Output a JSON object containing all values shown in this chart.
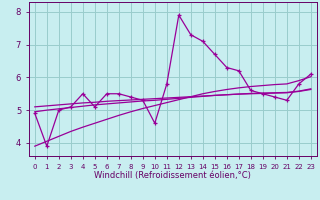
{
  "x": [
    0,
    1,
    2,
    3,
    4,
    5,
    6,
    7,
    8,
    9,
    10,
    11,
    12,
    13,
    14,
    15,
    16,
    17,
    18,
    19,
    20,
    21,
    22,
    23
  ],
  "y_main": [
    4.9,
    3.9,
    5.0,
    5.1,
    5.5,
    5.1,
    5.5,
    5.5,
    5.4,
    5.3,
    4.6,
    5.8,
    7.9,
    7.3,
    7.1,
    6.7,
    6.3,
    6.2,
    5.6,
    5.5,
    5.4,
    5.3,
    5.8,
    6.1
  ],
  "trend_steep": [
    3.9,
    4.05,
    4.2,
    4.35,
    4.48,
    4.6,
    4.72,
    4.84,
    4.95,
    5.05,
    5.14,
    5.23,
    5.32,
    5.41,
    5.5,
    5.57,
    5.63,
    5.68,
    5.72,
    5.75,
    5.78,
    5.8,
    5.9,
    6.02
  ],
  "trend_mid": [
    4.95,
    5.0,
    5.04,
    5.08,
    5.12,
    5.16,
    5.19,
    5.22,
    5.25,
    5.28,
    5.3,
    5.33,
    5.36,
    5.39,
    5.42,
    5.45,
    5.47,
    5.49,
    5.51,
    5.52,
    5.53,
    5.54,
    5.58,
    5.65
  ],
  "trend_flat": [
    5.1,
    5.13,
    5.16,
    5.19,
    5.22,
    5.24,
    5.27,
    5.29,
    5.31,
    5.33,
    5.35,
    5.37,
    5.39,
    5.41,
    5.43,
    5.45,
    5.47,
    5.49,
    5.5,
    5.51,
    5.52,
    5.53,
    5.57,
    5.63
  ],
  "bg_color": "#c8eef0",
  "line_color": "#990099",
  "grid_color": "#99cccc",
  "axis_color": "#660066",
  "xlabel": "Windchill (Refroidissement éolien,°C)",
  "xlim": [
    -0.5,
    23.5
  ],
  "ylim": [
    3.6,
    8.3
  ],
  "yticks": [
    4,
    5,
    6,
    7
  ],
  "ytick_extra": 8,
  "xticks": [
    0,
    1,
    2,
    3,
    4,
    5,
    6,
    7,
    8,
    9,
    10,
    11,
    12,
    13,
    14,
    15,
    16,
    17,
    18,
    19,
    20,
    21,
    22,
    23
  ]
}
